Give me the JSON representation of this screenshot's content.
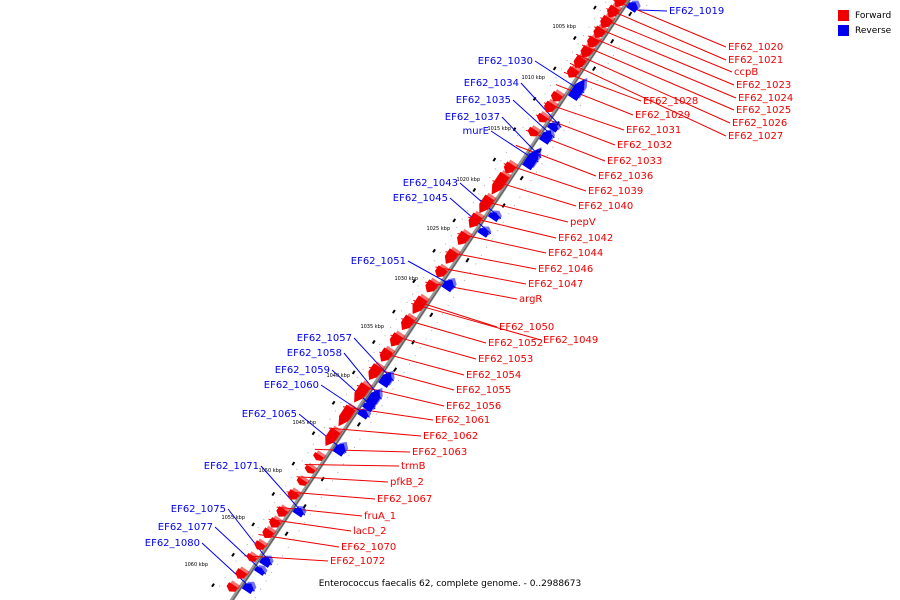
{
  "caption": "Enterococcus faecalis 62, complete genome. - 0..2988673",
  "legend": [
    {
      "label": "Forward",
      "color": "#ee0000"
    },
    {
      "label": "Reverse",
      "color": "#0000ee"
    }
  ],
  "colors": {
    "forward": "#ee0000",
    "reverse": "#0000ee",
    "backbone": "#777777"
  },
  "kbp_ticks": [
    "1005 kbp",
    "1010 kbp",
    "1015 kbp",
    "1020 kbp",
    "1025 kbp",
    "1030 kbp",
    "1035 kbp",
    "1040 kbp",
    "1045 kbp",
    "1050 kbp",
    "1055 kbp",
    "1060 kbp"
  ],
  "forward_labels": [
    "EF62_1020",
    "EF62_1021",
    "ccpB",
    "EF62_1023",
    "EF62_1024",
    "EF62_1025",
    "EF62_1026",
    "EF62_1027",
    "EF62_1028",
    "EF62_1029",
    "EF62_1031",
    "EF62_1032",
    "EF62_1033",
    "EF62_1036",
    "EF62_1039",
    "EF62_1040",
    "pepV",
    "EF62_1042",
    "EF62_1044",
    "EF62_1046",
    "EF62_1047",
    "argR",
    "EF62_1050",
    "EF62_1049",
    "EF62_1052",
    "EF62_1053",
    "EF62_1054",
    "EF62_1055",
    "EF62_1056",
    "EF62_1061",
    "EF62_1062",
    "EF62_1063",
    "trmB",
    "pfkB_2",
    "EF62_1067",
    "fruA_1",
    "lacD_2",
    "EF62_1070",
    "EF62_1072"
  ],
  "reverse_labels": [
    "EF62_1019",
    "EF62_1030",
    "EF62_1034",
    "EF62_1035",
    "EF62_1037",
    "murE",
    "EF62_1043",
    "EF62_1045",
    "EF62_1051",
    "EF62_1057",
    "EF62_1058",
    "EF62_1059",
    "EF62_1060",
    "EF62_1065",
    "EF62_1071",
    "EF62_1075",
    "EF62_1077",
    "EF62_1080"
  ]
}
